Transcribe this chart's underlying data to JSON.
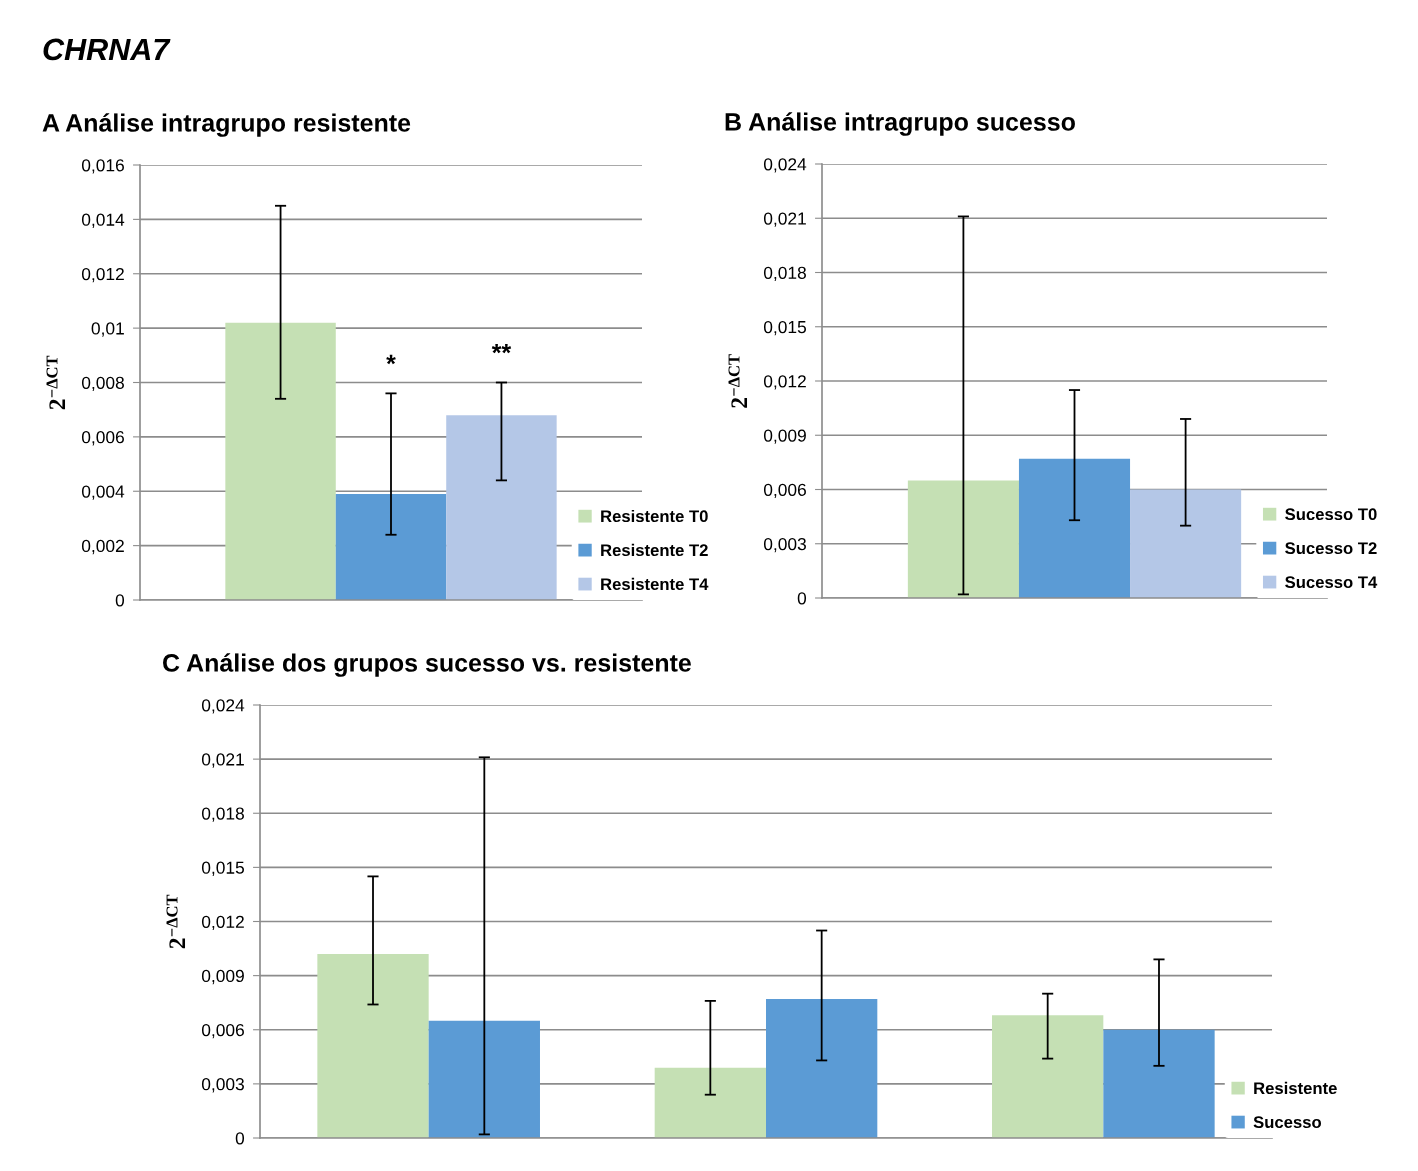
{
  "chart_data": [
    {
      "type": "bar",
      "title": "CHRNA7",
      "subtitle": "A Análise intragrupo resistente",
      "ylabel": "2$^{−ΔCT}$",
      "categories": [
        null
      ],
      "series": [
        {
          "name": "Resistente T0",
          "color": "#c5e0b4",
          "values": [
            0.0102
          ],
          "errors": [
            [
              0.0074,
              0.0145
            ]
          ]
        },
        {
          "name": "Resistente T2",
          "color": "#5b9bd5",
          "values": [
            0.0039
          ],
          "errors": [
            [
              0.0024,
              0.0076
            ]
          ]
        },
        {
          "name": "Resistente T4",
          "color": "#b4c7e7",
          "values": [
            0.0068
          ],
          "errors": [
            [
              0.0044,
              0.008
            ]
          ]
        }
      ],
      "ylim": [
        0,
        0.016
      ],
      "yticks": [
        0,
        {
          "value": 0.002,
          "label": "0,002"
        },
        {
          "value": 0.004,
          "label": "0,004"
        },
        {
          "value": 0.006,
          "label": "0,006"
        },
        {
          "value": 0.008,
          "label": "0,008"
        },
        {
          "value": 0.01,
          "label": "0,01"
        },
        {
          "value": 0.012,
          "label": "0,012"
        },
        {
          "value": 0.014,
          "label": "0,014"
        },
        {
          "value": 0.016,
          "label": "0,016"
        }
      ],
      "grid": "y",
      "legend": "bottom right",
      "tick_labels": "y",
      "annotations": [
        "*",
        "**"
      ]
    },
    {
      "type": "bar",
      "title": "B Análise intragrupo sucesso",
      "ylabel": "2$^{−ΔCT}$",
      "categories": [
        null
      ],
      "series": [
        {
          "name": "Sucesso T0",
          "color": "#c5e0b4",
          "values": [
            0.0065
          ],
          "errors": [
            [
              0.0002,
              0.0211
            ]
          ]
        },
        {
          "name": "Sucesso T2",
          "color": "#5b9bd5",
          "values": [
            0.0077
          ],
          "errors": [
            [
              0.0043,
              0.0115
            ]
          ]
        },
        {
          "name": "Sucesso T4",
          "color": "#b4c7e7",
          "values": [
            0.006
          ],
          "errors": [
            [
              0.004,
              0.0099
            ]
          ]
        }
      ],
      "ylim": [
        0,
        0.024
      ],
      "yticks": [
        0,
        {
          "value": 0.003,
          "label": "0,003"
        },
        {
          "value": 0.006,
          "label": "0,006"
        },
        {
          "value": 0.009,
          "label": "0,009"
        },
        {
          "value": 0.012,
          "label": "0,012"
        },
        {
          "value": 0.015,
          "label": "0,015"
        },
        {
          "value": 0.018,
          "label": "0,018"
        },
        {
          "value": 0.021,
          "label": "0,021"
        },
        {
          "value": 0.024,
          "label": "0,024"
        }
      ],
      "grid": "y",
      "legend": "bottom right",
      "tick_labels": "y"
    },
    {
      "type": "bar",
      "title": "C Análise dos grupos sucesso vs. resistente",
      "ylabel": "2$^{−ΔCT}$",
      "categories": [
        null,
        null,
        null
      ],
      "series": [
        {
          "name": "Resistente",
          "color": "#c5e0b4",
          "values": [
            0.0102,
            0.0039,
            0.0068
          ],
          "errors": [
            [
              0.0074,
              0.0145
            ],
            [
              0.0024,
              0.0076
            ],
            [
              0.0044,
              0.008
            ]
          ]
        },
        {
          "name": "Sucesso",
          "color": "#5b9bd5",
          "values": [
            0.0065,
            0.0077,
            0.006
          ],
          "errors": [
            [
              0.0002,
              0.0211
            ],
            [
              0.0043,
              0.0115
            ],
            [
              0.004,
              0.0099
            ]
          ]
        }
      ],
      "ylim": [
        0,
        0.024
      ],
      "yticks": [
        0,
        {
          "value": 0.003,
          "label": "0,003"
        },
        {
          "value": 0.006,
          "label": "0,006"
        },
        {
          "value": 0.009,
          "label": "0,009"
        },
        {
          "value": 0.012,
          "label": "0,012"
        },
        {
          "value": 0.015,
          "label": "0,015"
        },
        {
          "value": 0.018,
          "label": "0,018"
        },
        {
          "value": 0.021,
          "label": "0,021"
        },
        {
          "value": 0.024,
          "label": "0,024"
        }
      ],
      "grid": "y",
      "legend": "bottom right",
      "tick_labels": "y"
    }
  ]
}
